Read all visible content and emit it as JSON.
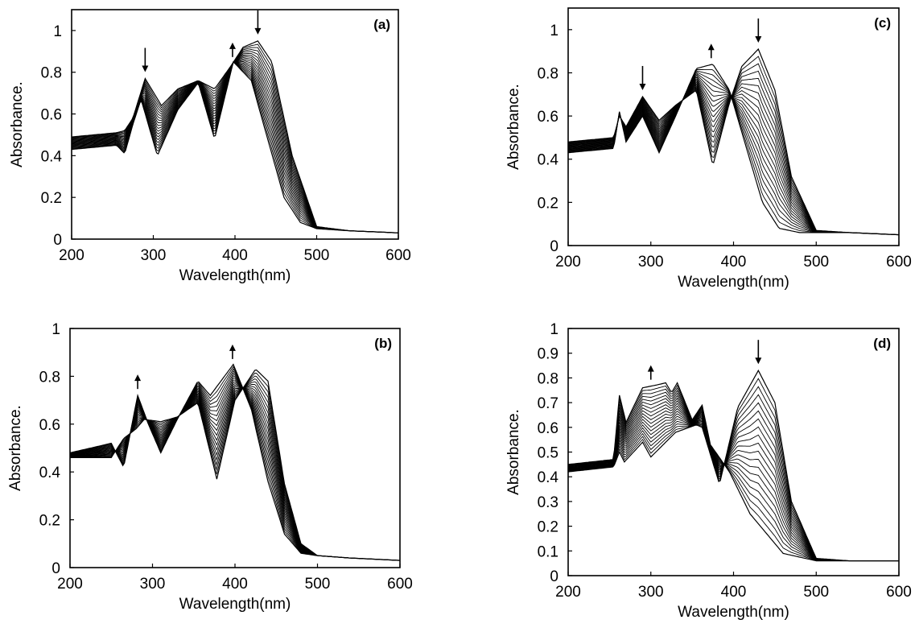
{
  "chart_data": [
    {
      "type": "line",
      "panel_label": "(a)",
      "xlabel": "Wavelength(nm)",
      "ylabel": "Absorbance.",
      "xlim": [
        200,
        600
      ],
      "ylim": [
        0,
        1.1
      ],
      "xticks": [
        "200",
        "300",
        "400",
        "500",
        "600"
      ],
      "yticks": [
        "0",
        "0.2",
        "0.4",
        "0.6",
        "0.8",
        "1"
      ],
      "grid": false,
      "legend": "none",
      "arrows": [
        {
          "x": 290,
          "direction": "down"
        },
        {
          "x": 397,
          "direction": "up"
        },
        {
          "x": 428,
          "direction": "down"
        }
      ],
      "series": [
        {
          "x": [
            200,
            255,
            265,
            275,
            290,
            310,
            330,
            355,
            375,
            395,
            410,
            428,
            445,
            470,
            500,
            540,
            600
          ],
          "y": [
            0.49,
            0.51,
            0.52,
            0.58,
            0.77,
            0.64,
            0.72,
            0.76,
            0.72,
            0.83,
            0.92,
            0.95,
            0.85,
            0.4,
            0.06,
            0.04,
            0.03
          ]
        },
        {
          "x": [
            200,
            255,
            265,
            275,
            285,
            305,
            330,
            355,
            375,
            398,
            420,
            440,
            460,
            480,
            500,
            540,
            600
          ],
          "y": [
            0.43,
            0.45,
            0.41,
            0.55,
            0.67,
            0.4,
            0.62,
            0.75,
            0.48,
            0.85,
            0.76,
            0.48,
            0.2,
            0.08,
            0.05,
            0.04,
            0.03
          ]
        }
      ]
    },
    {
      "type": "line",
      "panel_label": "(b)",
      "xlabel": "Wavelength(nm)",
      "ylabel": "Absorbance.",
      "xlim": [
        200,
        600
      ],
      "ylim": [
        0,
        1
      ],
      "xticks": [
        "200",
        "300",
        "400",
        "500",
        "600"
      ],
      "yticks": [
        "0",
        "0.2",
        "0.4",
        "0.6",
        "0.8",
        "1"
      ],
      "grid": false,
      "legend": "none",
      "arrows": [
        {
          "x": 282,
          "direction": "up"
        },
        {
          "x": 397,
          "direction": "up"
        }
      ],
      "series": [
        {
          "x": [
            200,
            250,
            265,
            280,
            290,
            310,
            330,
            355,
            378,
            400,
            425,
            440,
            460,
            480,
            500,
            540,
            600
          ],
          "y": [
            0.46,
            0.46,
            0.54,
            0.58,
            0.62,
            0.61,
            0.63,
            0.69,
            0.37,
            0.7,
            0.83,
            0.78,
            0.35,
            0.1,
            0.05,
            0.04,
            0.03
          ]
        },
        {
          "x": [
            200,
            250,
            265,
            282,
            295,
            310,
            330,
            355,
            370,
            398,
            420,
            440,
            460,
            480,
            500,
            540,
            600
          ],
          "y": [
            0.48,
            0.52,
            0.42,
            0.72,
            0.6,
            0.48,
            0.62,
            0.78,
            0.72,
            0.85,
            0.66,
            0.36,
            0.14,
            0.06,
            0.05,
            0.04,
            0.03
          ]
        }
      ]
    },
    {
      "type": "line",
      "panel_label": "(c)",
      "xlabel": "Wavelength(nm)",
      "ylabel": "Absorbance.",
      "xlim": [
        200,
        600
      ],
      "ylim": [
        0,
        1.1
      ],
      "xticks": [
        "200",
        "300",
        "400",
        "500",
        "600"
      ],
      "yticks": [
        "0",
        "0.2",
        "0.4",
        "0.6",
        "0.8",
        "1"
      ],
      "grid": false,
      "legend": "none",
      "arrows": [
        {
          "x": 290,
          "direction": "down"
        },
        {
          "x": 373,
          "direction": "up"
        },
        {
          "x": 430,
          "direction": "down"
        }
      ],
      "series": [
        {
          "x": [
            200,
            255,
            262,
            270,
            290,
            310,
            330,
            355,
            375,
            395,
            410,
            430,
            450,
            470,
            500,
            540,
            600
          ],
          "y": [
            0.48,
            0.5,
            0.6,
            0.55,
            0.69,
            0.58,
            0.65,
            0.72,
            0.37,
            0.66,
            0.83,
            0.91,
            0.72,
            0.32,
            0.07,
            0.06,
            0.05
          ]
        },
        {
          "x": [
            200,
            255,
            262,
            270,
            290,
            310,
            330,
            355,
            375,
            395,
            415,
            435,
            455,
            480,
            500,
            540,
            600
          ],
          "y": [
            0.43,
            0.45,
            0.62,
            0.48,
            0.6,
            0.43,
            0.6,
            0.82,
            0.84,
            0.72,
            0.46,
            0.2,
            0.08,
            0.06,
            0.06,
            0.06,
            0.05
          ]
        }
      ]
    },
    {
      "type": "line",
      "panel_label": "(d)",
      "xlabel": "Wavelength(nm)",
      "ylabel": "Absorbance.",
      "xlim": [
        200,
        600
      ],
      "ylim": [
        0,
        1
      ],
      "xticks": [
        "200",
        "300",
        "400",
        "500",
        "600"
      ],
      "yticks": [
        "0",
        "0.1",
        "0.2",
        "0.3",
        "0.4",
        "0.5",
        "0.6",
        "0.7",
        "0.8",
        "0.9",
        "1"
      ],
      "grid": false,
      "legend": "none",
      "arrows": [
        {
          "x": 300,
          "direction": "up"
        },
        {
          "x": 430,
          "direction": "down"
        }
      ],
      "series": [
        {
          "x": [
            200,
            255,
            262,
            268,
            290,
            300,
            330,
            355,
            362,
            383,
            405,
            430,
            450,
            470,
            500,
            540,
            600
          ],
          "y": [
            0.42,
            0.44,
            0.5,
            0.46,
            0.54,
            0.48,
            0.58,
            0.61,
            0.6,
            0.37,
            0.68,
            0.83,
            0.7,
            0.3,
            0.07,
            0.06,
            0.06
          ]
        },
        {
          "x": [
            200,
            255,
            262,
            270,
            290,
            305,
            318,
            325,
            332,
            350,
            362,
            372,
            395,
            420,
            460,
            500,
            600
          ],
          "y": [
            0.45,
            0.47,
            0.73,
            0.62,
            0.76,
            0.77,
            0.78,
            0.74,
            0.78,
            0.63,
            0.69,
            0.53,
            0.42,
            0.25,
            0.09,
            0.06,
            0.06
          ]
        }
      ]
    }
  ]
}
